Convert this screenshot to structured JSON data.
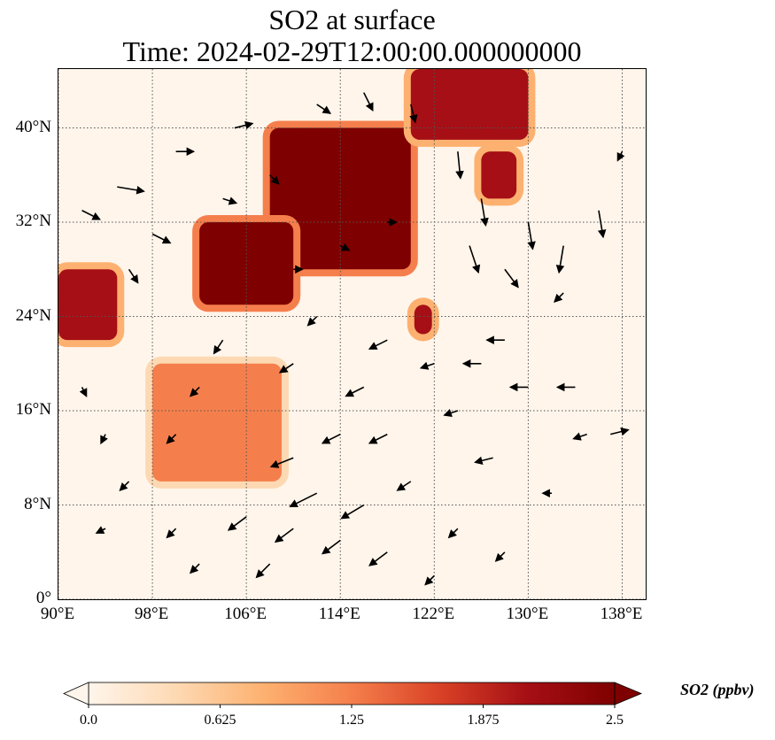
{
  "title": {
    "line1": "SO2 at surface",
    "line2": "Time: 2024-02-29T12:00:00.000000000"
  },
  "map": {
    "extent": {
      "lon_min": 90,
      "lon_max": 140,
      "lat_min": 0,
      "lat_max": 45
    },
    "lat_ticks": [
      {
        "value": 40,
        "label": "40°N"
      },
      {
        "value": 32,
        "label": "32°N"
      },
      {
        "value": 24,
        "label": "24°N"
      },
      {
        "value": 16,
        "label": "16°N"
      },
      {
        "value": 8,
        "label": "8°N"
      },
      {
        "value": 0,
        "label": "0°"
      }
    ],
    "lon_ticks": [
      {
        "value": 90,
        "label": "90°E"
      },
      {
        "value": 98,
        "label": "98°E"
      },
      {
        "value": 106,
        "label": "106°E"
      },
      {
        "value": 114,
        "label": "114°E"
      },
      {
        "value": 122,
        "label": "122°E"
      },
      {
        "value": 130,
        "label": "130°E"
      },
      {
        "value": 138,
        "label": "138°E"
      }
    ],
    "gridlines": true,
    "field": "SO2 surface concentration",
    "high_regions": [
      {
        "name": "north-china-plain",
        "lon": [
          108,
          120
        ],
        "lat": [
          28,
          40
        ],
        "value": 2.5
      },
      {
        "name": "sichuan-basin",
        "lon": [
          102,
          110
        ],
        "lat": [
          25,
          32
        ],
        "value": 2.5
      },
      {
        "name": "northeast-china",
        "lon": [
          120,
          130
        ],
        "lat": [
          39,
          45
        ],
        "value": 2.2
      },
      {
        "name": "taiwan",
        "lon": [
          120.3,
          121.8
        ],
        "lat": [
          22.5,
          25
        ],
        "value": 2.2
      },
      {
        "name": "korea",
        "lon": [
          126,
          129
        ],
        "lat": [
          34,
          38
        ],
        "value": 2.0
      },
      {
        "name": "indochina",
        "lon": [
          98,
          109
        ],
        "lat": [
          10,
          20
        ],
        "value": 1.2
      },
      {
        "name": "india-east",
        "lon": [
          90,
          95
        ],
        "lat": [
          22,
          28
        ],
        "value": 2.0
      }
    ],
    "wind_arrows": [
      {
        "lon": 92,
        "lat": 33,
        "u": 2,
        "v": -1
      },
      {
        "lon": 95,
        "lat": 35,
        "u": 3,
        "v": -0.5
      },
      {
        "lon": 98,
        "lat": 31,
        "u": 2,
        "v": -1
      },
      {
        "lon": 96,
        "lat": 28,
        "u": 1,
        "v": -1.5
      },
      {
        "lon": 100,
        "lat": 38,
        "u": 2,
        "v": 0
      },
      {
        "lon": 105,
        "lat": 40,
        "u": 2,
        "v": 0.5
      },
      {
        "lon": 108,
        "lat": 36,
        "u": 1,
        "v": -1
      },
      {
        "lon": 112,
        "lat": 42,
        "u": 1.5,
        "v": -1
      },
      {
        "lon": 116,
        "lat": 43,
        "u": 1,
        "v": -2
      },
      {
        "lon": 120,
        "lat": 42,
        "u": 0.5,
        "v": -2
      },
      {
        "lon": 124,
        "lat": 38,
        "u": 0.3,
        "v": -3
      },
      {
        "lon": 126,
        "lat": 34,
        "u": 0.5,
        "v": -3
      },
      {
        "lon": 125,
        "lat": 30,
        "u": 1,
        "v": -3
      },
      {
        "lon": 128,
        "lat": 28,
        "u": 1.5,
        "v": -2
      },
      {
        "lon": 130,
        "lat": 32,
        "u": 0.5,
        "v": -3
      },
      {
        "lon": 133,
        "lat": 30,
        "u": -0.5,
        "v": -3
      },
      {
        "lon": 136,
        "lat": 33,
        "u": 0.5,
        "v": -3
      },
      {
        "lon": 133,
        "lat": 26,
        "u": -1,
        "v": -1
      },
      {
        "lon": 128,
        "lat": 22,
        "u": -2,
        "v": 0
      },
      {
        "lon": 130,
        "lat": 18,
        "u": -2,
        "v": 0
      },
      {
        "lon": 134,
        "lat": 18,
        "u": -2,
        "v": 0
      },
      {
        "lon": 126,
        "lat": 20,
        "u": -2,
        "v": 0
      },
      {
        "lon": 135,
        "lat": 14,
        "u": -1.5,
        "v": -0.5
      },
      {
        "lon": 127,
        "lat": 12,
        "u": -2,
        "v": -0.5
      },
      {
        "lon": 122,
        "lat": 20,
        "u": -1.5,
        "v": -0.5
      },
      {
        "lon": 118,
        "lat": 22,
        "u": -2,
        "v": -1
      },
      {
        "lon": 116,
        "lat": 18,
        "u": -2,
        "v": -1
      },
      {
        "lon": 114,
        "lat": 14,
        "u": -2,
        "v": -1
      },
      {
        "lon": 118,
        "lat": 14,
        "u": -2,
        "v": -1
      },
      {
        "lon": 110,
        "lat": 12,
        "u": -2.5,
        "v": -1
      },
      {
        "lon": 112,
        "lat": 9,
        "u": -3,
        "v": -1.5
      },
      {
        "lon": 116,
        "lat": 8,
        "u": -2.5,
        "v": -1.5
      },
      {
        "lon": 114,
        "lat": 5,
        "u": -2,
        "v": -1.5
      },
      {
        "lon": 110,
        "lat": 6,
        "u": -2,
        "v": -1.5
      },
      {
        "lon": 106,
        "lat": 7,
        "u": -2,
        "v": -1.5
      },
      {
        "lon": 118,
        "lat": 4,
        "u": -2,
        "v": -1.5
      },
      {
        "lon": 108,
        "lat": 3,
        "u": -1.5,
        "v": -1.5
      },
      {
        "lon": 120,
        "lat": 10,
        "u": -1.5,
        "v": -1
      },
      {
        "lon": 124,
        "lat": 16,
        "u": -1.5,
        "v": -0.5
      },
      {
        "lon": 102,
        "lat": 18,
        "u": -1,
        "v": -1
      },
      {
        "lon": 100,
        "lat": 14,
        "u": -1,
        "v": -1
      },
      {
        "lon": 96,
        "lat": 10,
        "u": -1,
        "v": -1
      },
      {
        "lon": 94,
        "lat": 6,
        "u": -1,
        "v": -0.5
      },
      {
        "lon": 100,
        "lat": 6,
        "u": -1,
        "v": -1
      },
      {
        "lon": 102,
        "lat": 3,
        "u": -1,
        "v": -1
      },
      {
        "lon": 104,
        "lat": 22,
        "u": -1,
        "v": -1.5
      },
      {
        "lon": 112,
        "lat": 24,
        "u": -1,
        "v": -1
      },
      {
        "lon": 110,
        "lat": 20,
        "u": -1.5,
        "v": -1
      },
      {
        "lon": 92,
        "lat": 18,
        "u": 0.5,
        "v": -1
      },
      {
        "lon": 94,
        "lat": 14,
        "u": -0.5,
        "v": -1
      },
      {
        "lon": 118,
        "lat": 32,
        "u": 1,
        "v": 0
      },
      {
        "lon": 114,
        "lat": 30,
        "u": 1,
        "v": -0.5
      },
      {
        "lon": 110,
        "lat": 28,
        "u": 1,
        "v": 0
      },
      {
        "lon": 104,
        "lat": 34,
        "u": 1.5,
        "v": -0.5
      },
      {
        "lon": 138,
        "lat": 38,
        "u": -0.5,
        "v": -1
      },
      {
        "lon": 137,
        "lat": 14,
        "u": 2,
        "v": 0.5
      },
      {
        "lon": 132,
        "lat": 9,
        "u": -1,
        "v": 0
      },
      {
        "lon": 124,
        "lat": 6,
        "u": -1,
        "v": -1
      },
      {
        "lon": 128,
        "lat": 4,
        "u": -1,
        "v": -1
      },
      {
        "lon": 122,
        "lat": 2,
        "u": -1,
        "v": -1
      }
    ]
  },
  "colorbar": {
    "min": 0.0,
    "max": 2.5,
    "ticks": [
      {
        "value": 0.0,
        "label": "0.0"
      },
      {
        "value": 0.625,
        "label": "0.625"
      },
      {
        "value": 1.25,
        "label": "1.25"
      },
      {
        "value": 1.875,
        "label": "1.875"
      },
      {
        "value": 2.5,
        "label": "2.5"
      }
    ],
    "label": "SO2 (ppbv)",
    "colormap": [
      "#fff5eb",
      "#fdd9b3",
      "#fdb170",
      "#f57f4c",
      "#d94226",
      "#a50f15",
      "#7f0000"
    ]
  }
}
